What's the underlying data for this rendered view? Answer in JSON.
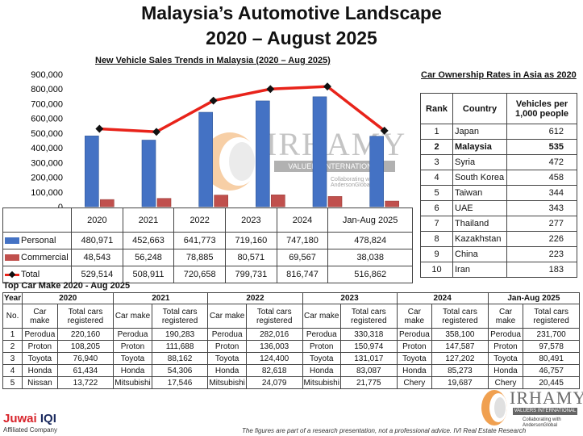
{
  "title_line1": "Malaysia’s Automotive Landscape",
  "title_line2": "2020 – August 2025",
  "chart_title": "New Vehicle Sales Trends in Malaysia (2020 – Aug 2025)",
  "chart_data": {
    "type": "bar",
    "title": "New Vehicle Sales Trends in Malaysia (2020 – Aug 2025)",
    "categories": [
      "2020",
      "2021",
      "2022",
      "2023",
      "2024",
      "Jan-Aug 2025"
    ],
    "ylim": [
      0,
      900000
    ],
    "yticks": [
      "900,000",
      "800,000",
      "700,000",
      "600,000",
      "500,000",
      "400,000",
      "300,000",
      "200,000",
      "100,000",
      "0"
    ],
    "series": [
      {
        "name": "Personal",
        "type": "bar",
        "color": "#4472c4",
        "values": [
          480971,
          452663,
          641773,
          719160,
          747180,
          478824
        ],
        "labels": [
          "480,971",
          "452,663",
          "641,773",
          "719,160",
          "747,180",
          "478,824"
        ]
      },
      {
        "name": "Commercial",
        "type": "bar",
        "color": "#c0504d",
        "values": [
          48543,
          56248,
          78885,
          80571,
          69567,
          38038
        ],
        "labels": [
          "48,543",
          "56,248",
          "78,885",
          "80,571",
          "69,567",
          "38,038"
        ]
      },
      {
        "name": "Total",
        "type": "line",
        "color": "#e8231a",
        "values": [
          529514,
          508911,
          720658,
          799731,
          816747,
          516862
        ],
        "labels": [
          "529,514",
          "508,911",
          "720,658",
          "799,731",
          "816,747",
          "516,862"
        ]
      }
    ],
    "legend": "table-below",
    "grid": false
  },
  "ownership": {
    "title": "Car Ownership Rates in Asia as 2020",
    "headers": [
      "Rank",
      "Country",
      "Vehicles per 1,000 people"
    ],
    "rows": [
      {
        "rank": "1",
        "country": "Japan",
        "value": "612"
      },
      {
        "rank": "2",
        "country": "Malaysia",
        "value": "535"
      },
      {
        "rank": "3",
        "country": "Syria",
        "value": "472"
      },
      {
        "rank": "4",
        "country": "South Korea",
        "value": "458"
      },
      {
        "rank": "5",
        "country": "Taiwan",
        "value": "344"
      },
      {
        "rank": "6",
        "country": "UAE",
        "value": "343"
      },
      {
        "rank": "7",
        "country": "Thailand",
        "value": "277"
      },
      {
        "rank": "8",
        "country": "Kazakhstan",
        "value": "226"
      },
      {
        "rank": "9",
        "country": "China",
        "value": "223"
      },
      {
        "rank": "10",
        "country": "Iran",
        "value": "183"
      }
    ]
  },
  "top_make": {
    "title": "Top Car Make 2020 - Aug 2025",
    "year_label": "Year",
    "no_label": "No.",
    "make_label": "Car make",
    "total_label": "Total cars registered",
    "years": [
      "2020",
      "2021",
      "2022",
      "2023",
      "2024",
      "Jan-Aug 2025"
    ],
    "rows": [
      {
        "no": "1",
        "cells": [
          [
            "Perodua",
            "220,160"
          ],
          [
            "Perodua",
            "190,283"
          ],
          [
            "Perodua",
            "282,016"
          ],
          [
            "Perodua",
            "330,318"
          ],
          [
            "Perodua",
            "358,100"
          ],
          [
            "Perodua",
            "231,700"
          ]
        ]
      },
      {
        "no": "2",
        "cells": [
          [
            "Proton",
            "108,205"
          ],
          [
            "Proton",
            "111,688"
          ],
          [
            "Proton",
            "136,003"
          ],
          [
            "Proton",
            "150,974"
          ],
          [
            "Proton",
            "147,587"
          ],
          [
            "Proton",
            "97,578"
          ]
        ]
      },
      {
        "no": "3",
        "cells": [
          [
            "Toyota",
            "76,940"
          ],
          [
            "Toyota",
            "88,162"
          ],
          [
            "Toyota",
            "124,400"
          ],
          [
            "Toyota",
            "131,017"
          ],
          [
            "Toyota",
            "127,202"
          ],
          [
            "Toyota",
            "80,491"
          ]
        ]
      },
      {
        "no": "4",
        "cells": [
          [
            "Honda",
            "61,434"
          ],
          [
            "Honda",
            "54,306"
          ],
          [
            "Honda",
            "82,618"
          ],
          [
            "Honda",
            "83,087"
          ],
          [
            "Honda",
            "85,273"
          ],
          [
            "Honda",
            "46,757"
          ]
        ]
      },
      {
        "no": "5",
        "cells": [
          [
            "Nissan",
            "13,722"
          ],
          [
            "Mitsubishi",
            "17,546"
          ],
          [
            "Mitsubishi",
            "24,079"
          ],
          [
            "Mitsubishi",
            "21,775"
          ],
          [
            "Chery",
            "19,687"
          ],
          [
            "Chery",
            "20,445"
          ]
        ]
      }
    ]
  },
  "footer": {
    "brand_a": "Juwai ",
    "brand_b": "IQI",
    "affiliated": "Affiliated Company",
    "disclaimer": "The figures are part of a research presentation, not a professional advice. IVI Real Estate Research"
  },
  "watermark": {
    "name": "IRHAMY",
    "bar": "VALUERS INTERNATIONAL",
    "sub": "Collaborating with AndersonGlobal"
  },
  "colors": {
    "personal": "#4472c4",
    "commercial": "#c0504d",
    "total": "#e8231a"
  }
}
